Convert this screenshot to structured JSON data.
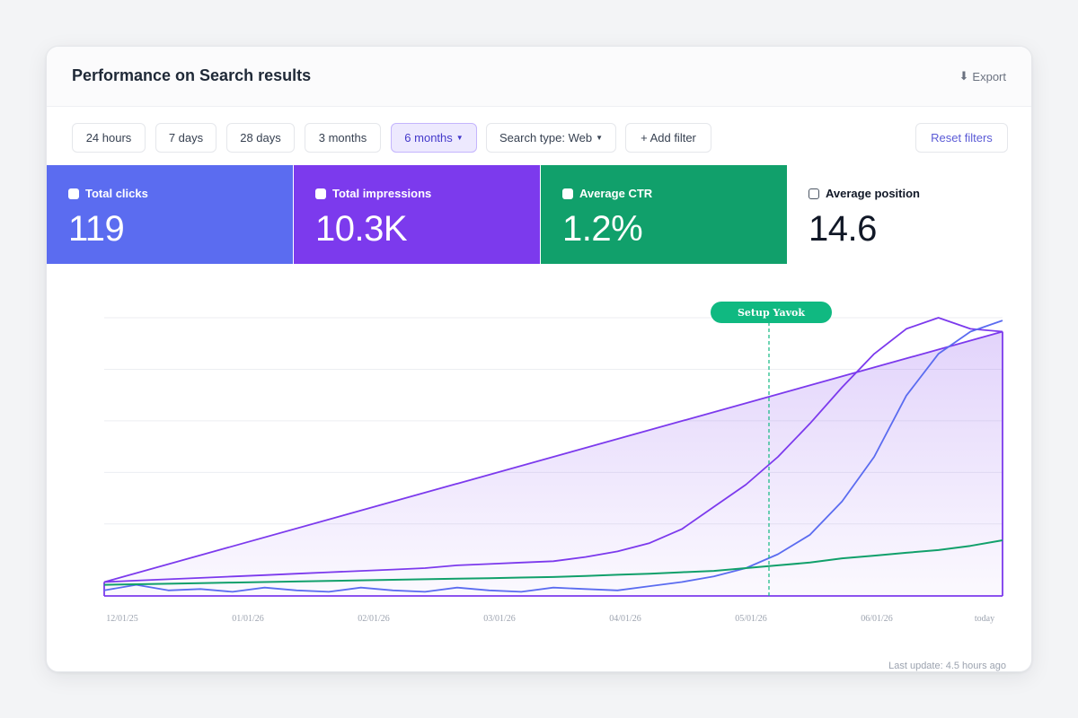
{
  "header": {
    "title": "Performance on Search results",
    "export_label": "Export",
    "export_icon": "download-icon"
  },
  "toolbar": {
    "range_buttons": [
      "24 hours",
      "7 days",
      "28 days",
      "3 months",
      "6 months"
    ],
    "active_range": "6 months",
    "search_type_label": "Search type: Web",
    "add_filter_label": "+ Add filter",
    "reset_label": "Reset filters"
  },
  "metrics": [
    {
      "label": "Total clicks",
      "value": "119",
      "color": "#5b6cf0",
      "selected": true
    },
    {
      "label": "Total impressions",
      "value": "10.3K",
      "color": "#7c3aed",
      "selected": true
    },
    {
      "label": "Average CTR",
      "value": "1.2%",
      "color": "#11a06b",
      "selected": true
    },
    {
      "label": "Average position",
      "value": "14.6",
      "color": "#ffffff",
      "selected": false
    }
  ],
  "chart_data": {
    "type": "line",
    "x_labels": [
      "12/01/25",
      "01/01/26",
      "02/01/26",
      "03/01/26",
      "04/01/26",
      "05/01/26",
      "06/01/26",
      "today"
    ],
    "annotation": {
      "label": "Setup Yavok",
      "x": 0.74
    },
    "grid": true,
    "series": [
      {
        "name": "Total impressions",
        "color": "#7c3aed",
        "fill": true,
        "values": [
          0.05,
          0.055,
          0.06,
          0.065,
          0.07,
          0.075,
          0.08,
          0.085,
          0.09,
          0.095,
          0.1,
          0.11,
          0.115,
          0.12,
          0.125,
          0.14,
          0.16,
          0.19,
          0.24,
          0.32,
          0.4,
          0.5,
          0.62,
          0.75,
          0.87,
          0.96,
          1.0,
          0.96,
          0.95
        ]
      },
      {
        "name": "Total clicks",
        "color": "#5b6cf0",
        "fill": false,
        "values": [
          0.02,
          0.04,
          0.02,
          0.025,
          0.015,
          0.03,
          0.02,
          0.015,
          0.03,
          0.02,
          0.015,
          0.03,
          0.02,
          0.015,
          0.03,
          0.025,
          0.02,
          0.035,
          0.05,
          0.07,
          0.1,
          0.15,
          0.22,
          0.34,
          0.5,
          0.72,
          0.87,
          0.95,
          0.99
        ]
      },
      {
        "name": "Average CTR",
        "color": "#11a06b",
        "fill": false,
        "values": [
          0.04,
          0.042,
          0.044,
          0.046,
          0.048,
          0.05,
          0.052,
          0.054,
          0.056,
          0.058,
          0.06,
          0.062,
          0.064,
          0.066,
          0.068,
          0.072,
          0.076,
          0.08,
          0.085,
          0.09,
          0.1,
          0.11,
          0.12,
          0.135,
          0.145,
          0.155,
          0.165,
          0.18,
          0.2
        ]
      }
    ]
  },
  "footer": {
    "last_update": "Last update: 4.5 hours ago"
  }
}
